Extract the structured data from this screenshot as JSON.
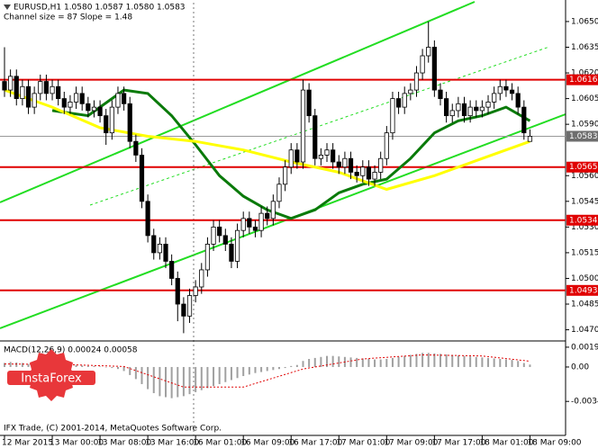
{
  "chart_data": {
    "type": "candlestick",
    "title": "EURUSD,H1  1.0580 1.0587 1.0580 1.0583",
    "subtitle": "Channel size = 87 Slope = 1.48",
    "categories": [
      "12 Mar 2015",
      null,
      null,
      null,
      null,
      null,
      null,
      null,
      "13 Mar 00:00",
      null,
      null,
      null,
      null,
      null,
      null,
      null,
      "13 Mar 08:00",
      null,
      null,
      null,
      null,
      null,
      null,
      null,
      "13 Mar 16:00",
      null,
      null,
      null,
      null,
      null,
      null,
      null,
      "16 Mar 01:00",
      null,
      null,
      null,
      null,
      null,
      null,
      null,
      "16 Mar 09:00",
      null,
      null,
      null,
      null,
      null,
      null,
      null,
      "16 Mar 17:00",
      null,
      null,
      null,
      null,
      null,
      null,
      null,
      "17 Mar 01:00",
      null,
      null,
      null,
      null,
      null,
      null,
      null,
      "17 Mar 09:00",
      null,
      null,
      null,
      null,
      null,
      null,
      null,
      "17 Mar 17:00",
      null,
      null,
      null,
      null,
      null,
      null,
      null,
      "18 Mar 01:00",
      null,
      null,
      null,
      null,
      null,
      null,
      null,
      "18 Mar 09:00"
    ],
    "open": [
      1.0615,
      1.061,
      1.0618,
      1.0605,
      1.0612,
      1.06,
      1.0608,
      1.0615,
      1.0608,
      1.0612,
      1.0605,
      1.06,
      1.0603,
      1.0608,
      1.0602,
      1.0598,
      1.06,
      1.0595,
      1.0585,
      1.06,
      1.0608,
      1.0602,
      1.058,
      1.0572,
      1.0545,
      1.0525,
      1.0515,
      1.052,
      1.051,
      1.05,
      1.0485,
      1.0478,
      1.049,
      1.0495,
      1.0505,
      1.052,
      1.053,
      1.0525,
      1.052,
      1.051,
      1.0528,
      1.0535,
      1.053,
      1.0528,
      1.0538,
      1.0535,
      1.0545,
      1.0555,
      1.0565,
      1.0575,
      1.0568,
      1.061,
      1.0595,
      1.057,
      1.0572,
      1.0575,
      1.0568,
      1.0565,
      1.057,
      1.0562,
      1.056,
      1.0565,
      1.0558,
      1.0562,
      1.057,
      1.0585,
      1.0605,
      1.06,
      1.0608,
      1.061,
      1.062,
      1.063,
      1.0635,
      1.061,
      1.0605,
      1.0595,
      1.0598,
      1.0602,
      1.0595,
      1.06,
      1.0598,
      1.06,
      1.0603,
      1.0608,
      1.0612,
      1.061,
      1.0608,
      1.06,
      1.058
    ],
    "high": [
      1.0635,
      1.0622,
      1.0622,
      1.0616,
      1.0616,
      1.0612,
      1.0619,
      1.0619,
      1.0616,
      1.0616,
      1.0609,
      1.0607,
      1.0612,
      1.0612,
      1.0606,
      1.0604,
      1.0604,
      1.0599,
      1.0604,
      1.0612,
      1.0612,
      1.0606,
      1.0584,
      1.0576,
      1.0549,
      1.0529,
      1.0524,
      1.0524,
      1.0514,
      1.0504,
      1.0489,
      1.0494,
      1.0499,
      1.0509,
      1.0524,
      1.0534,
      1.0534,
      1.0529,
      1.0524,
      1.0532,
      1.0539,
      1.0539,
      1.0534,
      1.0542,
      1.0542,
      1.0549,
      1.0559,
      1.0569,
      1.0579,
      1.0579,
      1.0616,
      1.0614,
      1.0599,
      1.0576,
      1.0579,
      1.0579,
      1.0572,
      1.0574,
      1.0574,
      1.0566,
      1.0569,
      1.0569,
      1.0566,
      1.0574,
      1.0589,
      1.0609,
      1.0609,
      1.0612,
      1.0614,
      1.0624,
      1.0634,
      1.065,
      1.0639,
      1.0614,
      1.0609,
      1.0602,
      1.0606,
      1.0606,
      1.0604,
      1.0604,
      1.0604,
      1.0607,
      1.0612,
      1.0616,
      1.0616,
      1.0614,
      1.0612,
      1.0604,
      1.0587
    ],
    "low": [
      1.0606,
      1.0606,
      1.0601,
      1.0601,
      1.0596,
      1.0596,
      1.0604,
      1.0604,
      1.0604,
      1.0601,
      1.0596,
      1.0596,
      1.0599,
      1.0598,
      1.0594,
      1.0594,
      1.0591,
      1.0578,
      1.0581,
      1.0596,
      1.0598,
      1.0576,
      1.0568,
      1.0541,
      1.0521,
      1.0511,
      1.0511,
      1.0506,
      1.0496,
      1.0475,
      1.0468,
      1.0474,
      1.0486,
      1.0491,
      1.0501,
      1.0516,
      1.0521,
      1.0516,
      1.0506,
      1.0506,
      1.0524,
      1.0526,
      1.0524,
      1.0524,
      1.0531,
      1.0531,
      1.0541,
      1.0551,
      1.0561,
      1.0564,
      1.0564,
      1.0591,
      1.0566,
      1.0566,
      1.0568,
      1.0564,
      1.0561,
      1.0561,
      1.0558,
      1.0556,
      1.0556,
      1.0554,
      1.0554,
      1.0558,
      1.0566,
      1.0581,
      1.0596,
      1.0596,
      1.0604,
      1.0606,
      1.0616,
      1.0626,
      1.0606,
      1.0601,
      1.0591,
      1.0591,
      1.0594,
      1.0591,
      1.0591,
      1.0594,
      1.0594,
      1.0596,
      1.0599,
      1.0604,
      1.0606,
      1.0604,
      1.0596,
      1.0581,
      1.058
    ],
    "close": [
      1.061,
      1.0618,
      1.0605,
      1.0612,
      1.06,
      1.0608,
      1.0615,
      1.0608,
      1.0612,
      1.0605,
      1.06,
      1.0603,
      1.0608,
      1.0602,
      1.0598,
      1.06,
      1.0595,
      1.0585,
      1.06,
      1.0608,
      1.0602,
      1.058,
      1.0572,
      1.0545,
      1.0525,
      1.0515,
      1.052,
      1.051,
      1.05,
      1.0485,
      1.0478,
      1.049,
      1.0495,
      1.0505,
      1.052,
      1.053,
      1.0525,
      1.052,
      1.051,
      1.0528,
      1.0535,
      1.053,
      1.0528,
      1.0538,
      1.0535,
      1.0545,
      1.0555,
      1.0565,
      1.0575,
      1.0568,
      1.061,
      1.0595,
      1.057,
      1.0572,
      1.0575,
      1.0568,
      1.0565,
      1.057,
      1.0562,
      1.056,
      1.0565,
      1.0558,
      1.0562,
      1.057,
      1.0585,
      1.0605,
      1.06,
      1.0608,
      1.061,
      1.062,
      1.063,
      1.0635,
      1.061,
      1.0605,
      1.0595,
      1.0598,
      1.0602,
      1.0595,
      1.06,
      1.0598,
      1.06,
      1.0603,
      1.0608,
      1.0612,
      1.061,
      1.0608,
      1.06,
      1.0585,
      1.0583
    ],
    "up_color": "#ffffff",
    "down_color": "#000000",
    "ylim": [
      1.0464,
      1.0661
    ],
    "yticks": [
      {
        "value": 1.047,
        "label": "1.0470"
      },
      1.0485,
      {
        "value": 1.05,
        "label": "1.0500"
      },
      1.0515,
      {
        "value": 1.053,
        "label": "1.0530"
      },
      1.0545,
      {
        "value": 1.056,
        "label": "1.0560"
      },
      {
        "value": 1.059,
        "label": "1.0590"
      },
      1.0605,
      {
        "value": 1.062,
        "label": "1.0620"
      },
      1.0635,
      {
        "value": 1.065,
        "label": "1.0650"
      }
    ],
    "overlays": [
      {
        "color": "#0a7a0a",
        "x": [
          8,
          14,
          20,
          24,
          28,
          32,
          36,
          40,
          44,
          48,
          52,
          56,
          60,
          64,
          68,
          72,
          76,
          80,
          84,
          88
        ],
        "values": [
          1.0598,
          1.0595,
          1.061,
          1.0608,
          1.0595,
          1.0578,
          1.056,
          1.0548,
          1.054,
          1.0535,
          1.054,
          1.055,
          1.0555,
          1.0558,
          1.057,
          1.0585,
          1.0592,
          1.0595,
          1.06,
          1.0592
        ]
      },
      {
        "color": "#ffff00",
        "x": [
          0,
          8,
          16,
          24,
          32,
          40,
          48,
          56,
          64,
          72,
          80,
          88
        ],
        "values": [
          1.061,
          1.06,
          1.0588,
          1.0583,
          1.058,
          1.0575,
          1.0568,
          1.0562,
          1.0552,
          1.056,
          1.057,
          1.058
        ]
      }
    ],
    "levels": [
      1.0616,
      1.0565,
      1.0534,
      1.0493
    ],
    "level_color": "#e00000",
    "last_price": 1.0583,
    "macd": {
      "label": "MACD(12,26,9) 0.00024 0.00058",
      "color": "#a0a0a0",
      "signal_color": "#e00000",
      "values": [
        0.0004,
        0.0005,
        0.00045,
        0.0004,
        0.0003,
        0.00035,
        0.0004,
        0.0003,
        0.00025,
        0.0002,
        0.00015,
        0.00015,
        0.0002,
        0.00015,
        0.0001,
        0.0001,
        5e-05,
        0,
        -0.0001,
        -0.0002,
        -0.0004,
        -0.0008,
        -0.0012,
        -0.0017,
        -0.0022,
        -0.0026,
        -0.0029,
        -0.003,
        -0.0031,
        -0.003,
        -0.0029,
        -0.0027,
        -0.0025,
        -0.0023,
        -0.0021,
        -0.0019,
        -0.0017,
        -0.0015,
        -0.0013,
        -0.0011,
        -0.0009,
        -0.00075,
        -0.0006,
        -0.0005,
        -0.0004,
        -0.0003,
        -0.0002,
        -0.0001,
        0.0001,
        0.0002,
        0.0006,
        0.0008,
        0.0009,
        0.001,
        0.0011,
        0.0011,
        0.00105,
        0.001,
        0.00095,
        0.0009,
        0.00085,
        0.0008,
        0.00075,
        0.00075,
        0.0008,
        0.0009,
        0.001,
        0.0011,
        0.0012,
        0.0013,
        0.0014,
        0.0014,
        0.00135,
        0.0013,
        0.00125,
        0.0012,
        0.00115,
        0.0011,
        0.00105,
        0.001,
        0.00095,
        0.0009,
        0.00085,
        0.0008,
        0.00075,
        0.0007,
        0.0006,
        0.0004,
        0.00024
      ],
      "signal": {
        "x": [
          0,
          10,
          20,
          30,
          40,
          50,
          60,
          70,
          80,
          88
        ],
        "values": [
          0.0003,
          0.00025,
          5e-05,
          -0.002,
          -0.002,
          -0.0002,
          0.0008,
          0.0012,
          0.0011,
          0.00058
        ]
      },
      "ylim": [
        -0.0068,
        0.0025
      ],
      "yticks": [
        0.00197,
        {
          "value": 0,
          "label": "0.00"
        },
        -0.00342
      ]
    },
    "footer": "IFX Trade, (C) 2001-2014, MetaQuotes Software Corp.",
    "logo": "InstaForex"
  }
}
